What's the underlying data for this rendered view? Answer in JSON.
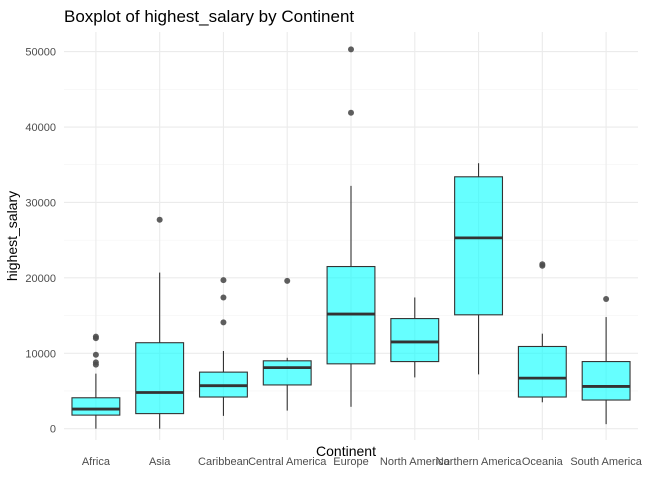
{
  "chart_data": {
    "type": "boxplot",
    "title": "Boxplot of highest_salary by Continent",
    "xlabel": "Continent",
    "ylabel": "highest_salary",
    "ylim": [
      -1500,
      52600
    ],
    "yticks": [
      0,
      10000,
      20000,
      30000,
      40000,
      50000
    ],
    "grid": true,
    "box_color": "#00ffff",
    "box_opacity": 0.6,
    "outline_color": "#333333",
    "outlier_color": "#4d4d4d",
    "categories": [
      "Africa",
      "Asia",
      "Caribbean",
      "Central America",
      "Europe",
      "North America",
      "Northern America",
      "Oceania",
      "South America"
    ],
    "boxes": [
      {
        "category": "Africa",
        "whisker_low": 0,
        "q1": 1800,
        "median": 2600,
        "q3": 4100,
        "whisker_high": 7300,
        "outliers": [
          8500,
          8800,
          9800,
          12000,
          12200
        ]
      },
      {
        "category": "Asia",
        "whisker_low": 0,
        "q1": 2000,
        "median": 4800,
        "q3": 11400,
        "whisker_high": 20700,
        "outliers": [
          27700
        ]
      },
      {
        "category": "Caribbean",
        "whisker_low": 1700,
        "q1": 4200,
        "median": 5700,
        "q3": 7500,
        "whisker_high": 10300,
        "outliers": [
          14100,
          17400,
          19700
        ]
      },
      {
        "category": "Central America",
        "whisker_low": 2400,
        "q1": 5800,
        "median": 8100,
        "q3": 9000,
        "whisker_high": 9400,
        "outliers": [
          19600
        ]
      },
      {
        "category": "Europe",
        "whisker_low": 2900,
        "q1": 8600,
        "median": 15200,
        "q3": 21500,
        "whisker_high": 32200,
        "outliers": [
          41900,
          50300
        ]
      },
      {
        "category": "North America",
        "whisker_low": 6800,
        "q1": 8900,
        "median": 11500,
        "q3": 14600,
        "whisker_high": 17400,
        "outliers": []
      },
      {
        "category": "Northern America",
        "whisker_low": 7200,
        "q1": 15100,
        "median": 25300,
        "q3": 33400,
        "whisker_high": 35200,
        "outliers": []
      },
      {
        "category": "Oceania",
        "whisker_low": 3500,
        "q1": 4200,
        "median": 6700,
        "q3": 10900,
        "whisker_high": 12600,
        "outliers": [
          21600,
          21800
        ]
      },
      {
        "category": "South America",
        "whisker_low": 600,
        "q1": 3800,
        "median": 5600,
        "q3": 8900,
        "whisker_high": 14800,
        "outliers": [
          17200
        ]
      }
    ]
  }
}
